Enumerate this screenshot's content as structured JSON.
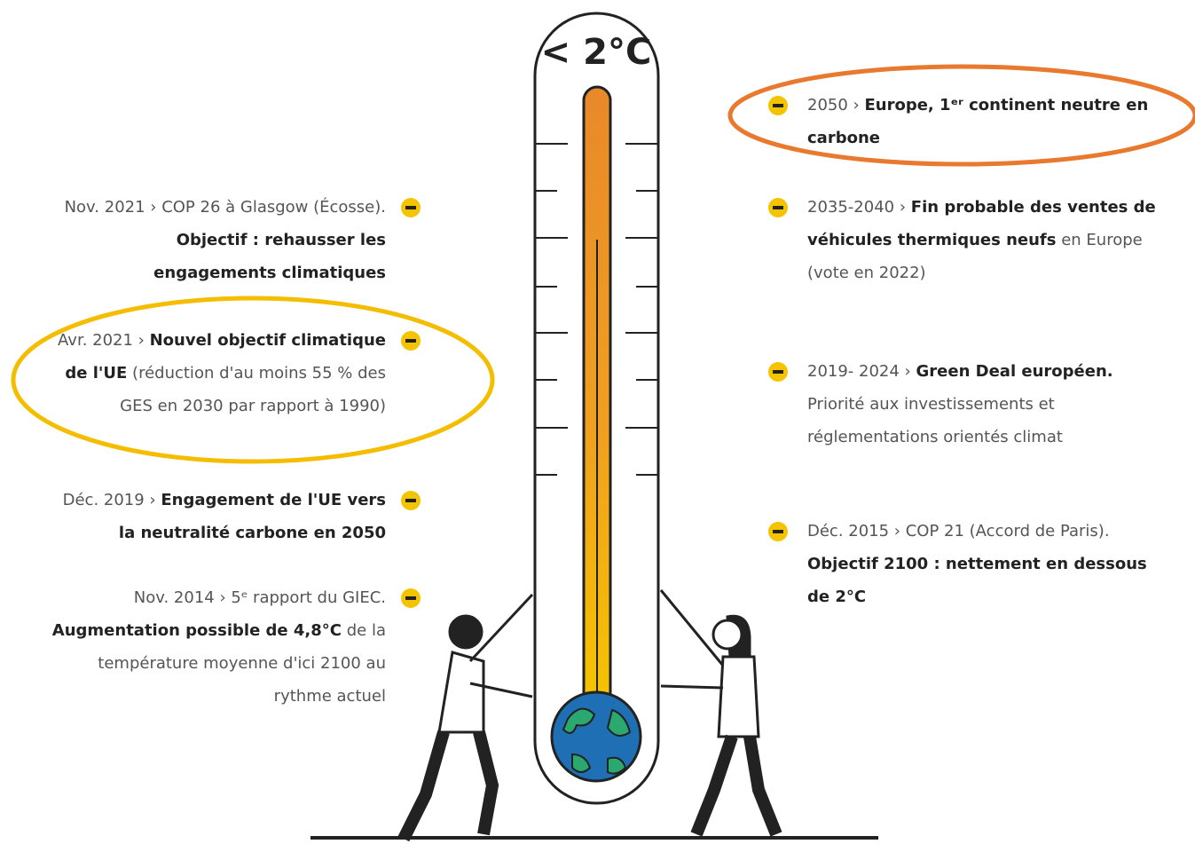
{
  "thermometer_label": "< 2°C",
  "left_items": [
    {
      "lead": "Nov. 2021 › COP 26 à Glasgow (Écosse).",
      "bold": "Objectif : rehausser les engagements climatiques"
    },
    {
      "lead": "Avr. 2021 ›",
      "bold": "Nouvel objectif climatique de l'UE",
      "rest": "(réduction d'au moins 55 % des GES en 2030 par rapport à 1990)"
    },
    {
      "lead": "Déc. 2019 ›",
      "bold": "Engagement de l'UE vers la neutralité carbone en 2050"
    },
    {
      "lead": "Nov. 2014 › 5ᵉ rapport du GIEC.",
      "bold": "Augmentation possible de 4,8°C",
      "rest": "de la température moyenne d'ici 2100 au rythme actuel"
    }
  ],
  "right_items": [
    {
      "lead": "2050 ›",
      "bold": "Europe, 1ᵉʳ continent neutre en carbone"
    },
    {
      "lead": "2035-2040 ›",
      "bold": "Fin probable des ventes de véhicules thermiques neufs",
      "rest": "en Europe (vote en 2022)"
    },
    {
      "lead": "2019- 2024 ›",
      "bold": "Green Deal européen.",
      "rest": "Priorité aux investissements et réglementations orientés climat"
    },
    {
      "lead": "Déc. 2015 › COP 21 (Accord de Paris).",
      "bold": "Objectif 2100 : nettement en dessous de 2°C"
    }
  ]
}
